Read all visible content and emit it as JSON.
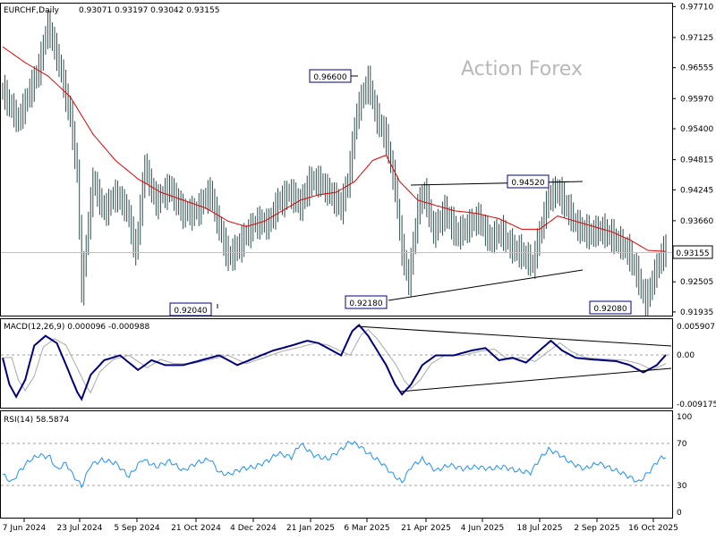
{
  "header": {
    "symbol": "EURCHF,Daily",
    "ohlc": "0.93071 0.93197 0.93042 0.93155"
  },
  "watermark": "Action Forex",
  "colors": {
    "bar": "#2f4f4f",
    "ma": "#e00000",
    "macd_line": "#00007f",
    "macd_signal": "#a9a9a9",
    "rsi_line": "#1e90ff",
    "grid_dash": "#a0a0a0",
    "label_box": "#00007f"
  },
  "price_labels": [
    {
      "text": "0.96600"
    },
    {
      "text": "0.94520"
    },
    {
      "text": "0.92040"
    },
    {
      "text": "0.92180"
    },
    {
      "text": "0.92080"
    }
  ],
  "current_price": "0.93155",
  "macd": {
    "label": "MACD(12,26,9) 0.000096 -0.000988",
    "axis_ticks": [
      "0.005907",
      "0.00",
      "-0.009175"
    ]
  },
  "rsi": {
    "label": "RSI(14) 58.5874",
    "axis_ticks": [
      "100",
      "70",
      "30",
      "0"
    ]
  },
  "chart_data": {
    "type": "bar",
    "title": "EURCHF,Daily",
    "x_ticks": [
      "7 Jun 2024",
      "23 Jul 2024",
      "5 Sep 2024",
      "21 Oct 2024",
      "4 Dec 2024",
      "21 Jan 2025",
      "6 Mar 2025",
      "21 Apr 2025",
      "4 Jun 2025",
      "18 Jul 2025",
      "2 Sep 2025",
      "16 Oct 2025"
    ],
    "y_ticks": [
      "0.97710",
      "0.97125",
      "0.96555",
      "0.95970",
      "0.95400",
      "0.94815",
      "0.94245",
      "0.93660",
      "0.93155",
      "0.92505",
      "0.91935"
    ],
    "ylim": [
      0.919,
      0.9775
    ],
    "series": [
      {
        "name": "EURCHF",
        "anchors": [
          [
            0,
            0.961
          ],
          [
            7,
            0.9555
          ],
          [
            16,
            0.9655
          ],
          [
            20,
            0.9735
          ],
          [
            25,
            0.9665
          ],
          [
            30,
            0.956
          ],
          [
            33,
            0.946
          ],
          [
            35,
            0.924
          ],
          [
            40,
            0.944
          ],
          [
            45,
            0.9385
          ],
          [
            50,
            0.9415
          ],
          [
            55,
            0.939
          ],
          [
            59,
            0.9305
          ],
          [
            63,
            0.947
          ],
          [
            68,
            0.94
          ],
          [
            74,
            0.943
          ],
          [
            80,
            0.938
          ],
          [
            86,
            0.9385
          ],
          [
            92,
            0.942
          ],
          [
            96,
            0.9355
          ],
          [
            100,
            0.9295
          ],
          [
            104,
            0.9315
          ],
          [
            108,
            0.934
          ],
          [
            113,
            0.9365
          ],
          [
            118,
            0.936
          ],
          [
            122,
            0.94
          ],
          [
            127,
            0.942
          ],
          [
            132,
            0.9395
          ],
          [
            136,
            0.944
          ],
          [
            140,
            0.944
          ],
          [
            145,
            0.942
          ],
          [
            150,
            0.939
          ],
          [
            153,
            0.944
          ],
          [
            157,
            0.957
          ],
          [
            162,
            0.963
          ],
          [
            166,
            0.956
          ],
          [
            170,
            0.952
          ],
          [
            174,
            0.943
          ],
          [
            177,
            0.931
          ],
          [
            180,
            0.925
          ],
          [
            184,
            0.939
          ],
          [
            187,
            0.942
          ],
          [
            191,
            0.9345
          ],
          [
            196,
            0.9385
          ],
          [
            201,
            0.934
          ],
          [
            206,
            0.9355
          ],
          [
            211,
            0.937
          ],
          [
            216,
            0.933
          ],
          [
            221,
            0.9345
          ],
          [
            226,
            0.9315
          ],
          [
            231,
            0.93
          ],
          [
            235,
            0.9285
          ],
          [
            238,
            0.934
          ],
          [
            242,
            0.941
          ],
          [
            246,
            0.9425
          ],
          [
            250,
            0.939
          ],
          [
            255,
            0.9355
          ],
          [
            260,
            0.934
          ],
          [
            265,
            0.935
          ],
          [
            270,
            0.9335
          ],
          [
            275,
            0.932
          ],
          [
            278,
            0.93
          ],
          [
            282,
            0.9255
          ],
          [
            285,
            0.9215
          ],
          [
            288,
            0.925
          ],
          [
            291,
            0.929
          ],
          [
            294,
            0.9315
          ]
        ]
      },
      {
        "name": "MA",
        "anchors": [
          [
            0,
            0.9695
          ],
          [
            10,
            0.9665
          ],
          [
            20,
            0.964
          ],
          [
            30,
            0.96
          ],
          [
            40,
            0.953
          ],
          [
            50,
            0.948
          ],
          [
            60,
            0.9445
          ],
          [
            70,
            0.942
          ],
          [
            80,
            0.9405
          ],
          [
            90,
            0.939
          ],
          [
            100,
            0.9365
          ],
          [
            108,
            0.9355
          ],
          [
            116,
            0.9365
          ],
          [
            124,
            0.9385
          ],
          [
            132,
            0.9405
          ],
          [
            140,
            0.9415
          ],
          [
            148,
            0.942
          ],
          [
            156,
            0.944
          ],
          [
            164,
            0.948
          ],
          [
            170,
            0.949
          ],
          [
            176,
            0.944
          ],
          [
            184,
            0.9405
          ],
          [
            192,
            0.9395
          ],
          [
            200,
            0.9385
          ],
          [
            210,
            0.938
          ],
          [
            220,
            0.937
          ],
          [
            230,
            0.935
          ],
          [
            238,
            0.935
          ],
          [
            246,
            0.9375
          ],
          [
            254,
            0.9365
          ],
          [
            262,
            0.9355
          ],
          [
            270,
            0.9345
          ],
          [
            278,
            0.933
          ],
          [
            286,
            0.931
          ],
          [
            294,
            0.9308
          ]
        ]
      }
    ],
    "macd": {
      "name": "MACD(12,26,9)",
      "ylim": [
        -0.01,
        0.0065
      ],
      "anchors": [
        [
          0,
          -0.0005
        ],
        [
          3,
          -0.006
        ],
        [
          6,
          -0.0085
        ],
        [
          10,
          -0.005
        ],
        [
          14,
          0.002
        ],
        [
          19,
          0.004
        ],
        [
          24,
          0.0025
        ],
        [
          29,
          -0.003
        ],
        [
          33,
          -0.0075
        ],
        [
          35,
          -0.009
        ],
        [
          39,
          -0.004
        ],
        [
          45,
          -0.001
        ],
        [
          52,
          0.0
        ],
        [
          60,
          -0.003
        ],
        [
          66,
          -0.001
        ],
        [
          72,
          -0.002
        ],
        [
          80,
          -0.002
        ],
        [
          88,
          -0.001
        ],
        [
          96,
          0.0
        ],
        [
          104,
          -0.002
        ],
        [
          112,
          -0.0005
        ],
        [
          120,
          0.001
        ],
        [
          128,
          0.002
        ],
        [
          135,
          0.003
        ],
        [
          140,
          0.0025
        ],
        [
          146,
          0.001
        ],
        [
          150,
          0.0
        ],
        [
          155,
          0.005
        ],
        [
          158,
          0.0062
        ],
        [
          162,
          0.004
        ],
        [
          166,
          0.001
        ],
        [
          170,
          -0.002
        ],
        [
          174,
          -0.006
        ],
        [
          177,
          -0.008
        ],
        [
          181,
          -0.006
        ],
        [
          186,
          -0.002
        ],
        [
          192,
          0.0
        ],
        [
          200,
          0.0
        ],
        [
          208,
          0.001
        ],
        [
          214,
          0.0015
        ],
        [
          220,
          -0.001
        ],
        [
          226,
          -0.0005
        ],
        [
          232,
          -0.0015
        ],
        [
          238,
          0.001
        ],
        [
          243,
          0.003
        ],
        [
          248,
          0.001
        ],
        [
          254,
          -0.0005
        ],
        [
          260,
          -0.0008
        ],
        [
          266,
          -0.001
        ],
        [
          272,
          -0.0012
        ],
        [
          278,
          -0.002
        ],
        [
          284,
          -0.0035
        ],
        [
          290,
          -0.002
        ],
        [
          294,
          0.0001
        ]
      ]
    },
    "rsi": {
      "name": "RSI(14)",
      "ylim": [
        0,
        100
      ],
      "anchors": [
        [
          0,
          40
        ],
        [
          4,
          32
        ],
        [
          8,
          45
        ],
        [
          12,
          55
        ],
        [
          16,
          60
        ],
        [
          21,
          58
        ],
        [
          24,
          45
        ],
        [
          28,
          52
        ],
        [
          31,
          40
        ],
        [
          35,
          28
        ],
        [
          39,
          50
        ],
        [
          44,
          55
        ],
        [
          50,
          52
        ],
        [
          56,
          38
        ],
        [
          62,
          56
        ],
        [
          68,
          48
        ],
        [
          74,
          54
        ],
        [
          80,
          44
        ],
        [
          86,
          52
        ],
        [
          92,
          56
        ],
        [
          96,
          42
        ],
        [
          100,
          40
        ],
        [
          106,
          46
        ],
        [
          112,
          48
        ],
        [
          118,
          55
        ],
        [
          122,
          62
        ],
        [
          128,
          58
        ],
        [
          132,
          72
        ],
        [
          138,
          60
        ],
        [
          144,
          56
        ],
        [
          150,
          66
        ],
        [
          154,
          74
        ],
        [
          158,
          70
        ],
        [
          162,
          62
        ],
        [
          168,
          52
        ],
        [
          173,
          40
        ],
        [
          177,
          32
        ],
        [
          181,
          48
        ],
        [
          186,
          56
        ],
        [
          192,
          44
        ],
        [
          198,
          50
        ],
        [
          204,
          46
        ],
        [
          210,
          48
        ],
        [
          216,
          46
        ],
        [
          222,
          48
        ],
        [
          228,
          44
        ],
        [
          234,
          42
        ],
        [
          238,
          56
        ],
        [
          242,
          66
        ],
        [
          246,
          62
        ],
        [
          252,
          52
        ],
        [
          258,
          46
        ],
        [
          264,
          52
        ],
        [
          270,
          46
        ],
        [
          276,
          40
        ],
        [
          282,
          32
        ],
        [
          287,
          44
        ],
        [
          291,
          56
        ],
        [
          294,
          59
        ]
      ]
    }
  }
}
